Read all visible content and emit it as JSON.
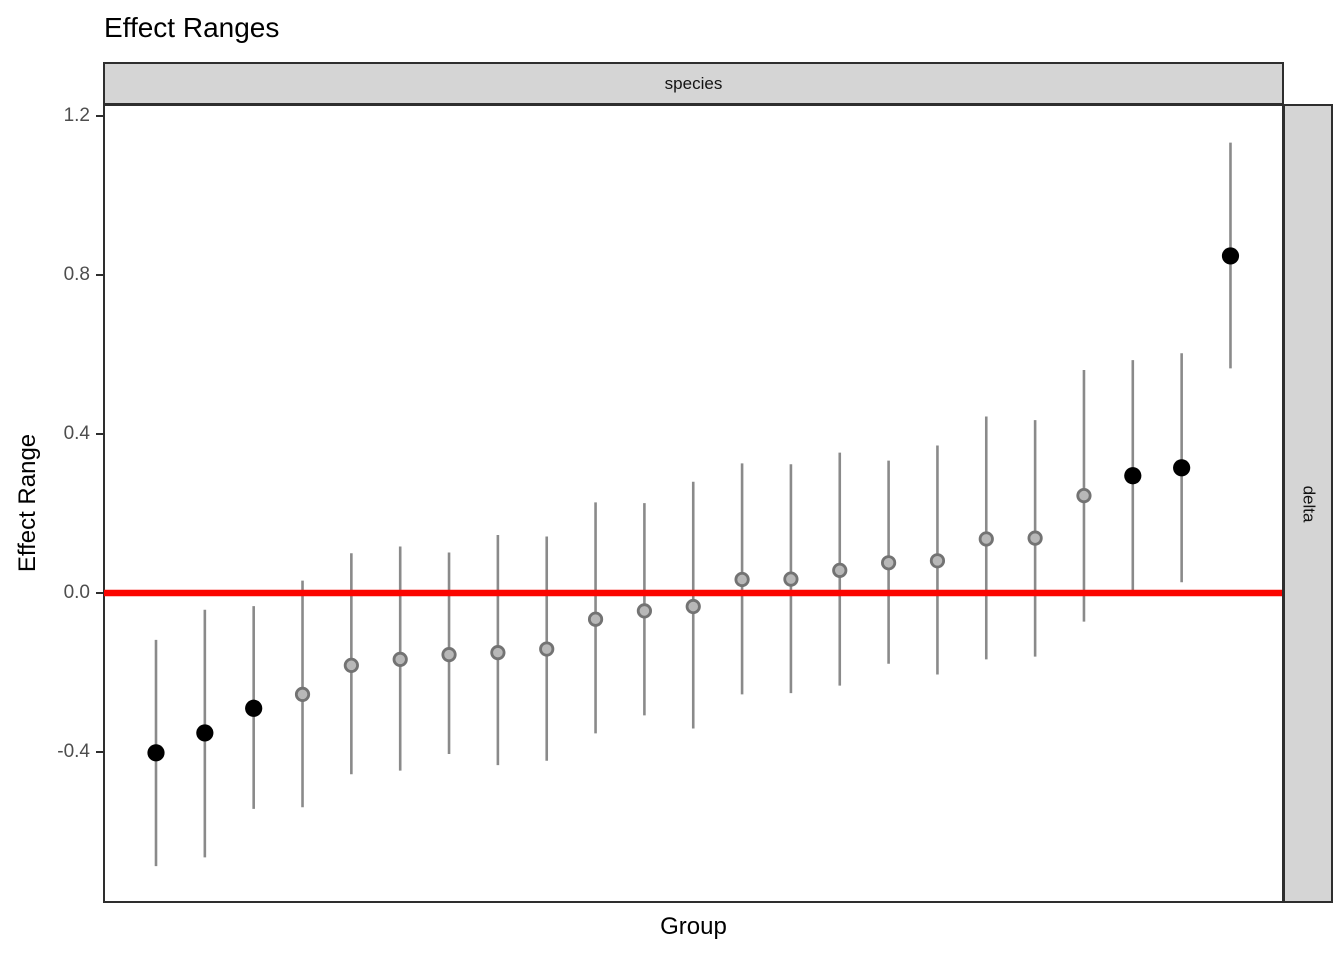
{
  "window": {
    "title": "Effect Ranges",
    "background_color": "#ffffff"
  },
  "chart": {
    "title": "Effect Ranges",
    "facet_top_label": "species",
    "facet_right_label": "delta",
    "x_axis_label": "Group",
    "y_axis_label": "Effect Range"
  },
  "colors": {
    "reference_line": "#FB0500",
    "interval_bar": "#8a8a8a",
    "point_black": "#000000",
    "point_gray_fill": "#b8b8b8",
    "point_gray_stroke": "#737373",
    "strip_fill": "#d5d5d5",
    "panel_border": "#2e2e2e",
    "tick_label": "#4d4d4d"
  },
  "chart_data": {
    "type": "scatter",
    "subtype": "point-range (caterpillar plot)",
    "title": "Effect Ranges",
    "xlabel": "Group",
    "ylabel": "Effect Range",
    "facet_top": "species",
    "facet_right": "delta",
    "x_axis": "23 unlabeled discrete groups, sorted ascending by estimate",
    "ylim": [
      -0.78,
      1.23
    ],
    "y_ticks": [
      {
        "label": "1.2",
        "value": 1.2
      },
      {
        "label": "0.8",
        "value": 0.8
      },
      {
        "label": "0.4",
        "value": 0.4
      },
      {
        "label": "0.0",
        "value": 0.0
      },
      {
        "label": "-0.4",
        "value": -0.4
      }
    ],
    "grid": false,
    "legend_position": "none",
    "reference_line_y": 0.0,
    "points": [
      {
        "group": 1,
        "estimate": -0.402,
        "low": -0.687,
        "high": -0.118,
        "emphasis": "black"
      },
      {
        "group": 2,
        "estimate": -0.352,
        "low": -0.665,
        "high": -0.042,
        "emphasis": "black"
      },
      {
        "group": 3,
        "estimate": -0.29,
        "low": -0.543,
        "high": -0.033,
        "emphasis": "black"
      },
      {
        "group": 4,
        "estimate": -0.255,
        "low": -0.539,
        "high": 0.031,
        "emphasis": "gray"
      },
      {
        "group": 5,
        "estimate": -0.182,
        "low": -0.456,
        "high": 0.1,
        "emphasis": "gray"
      },
      {
        "group": 6,
        "estimate": -0.167,
        "low": -0.447,
        "high": 0.117,
        "emphasis": "gray"
      },
      {
        "group": 7,
        "estimate": -0.155,
        "low": -0.405,
        "high": 0.102,
        "emphasis": "gray"
      },
      {
        "group": 8,
        "estimate": -0.15,
        "low": -0.433,
        "high": 0.146,
        "emphasis": "gray"
      },
      {
        "group": 9,
        "estimate": -0.141,
        "low": -0.422,
        "high": 0.142,
        "emphasis": "gray"
      },
      {
        "group": 10,
        "estimate": -0.066,
        "low": -0.353,
        "high": 0.228,
        "emphasis": "gray"
      },
      {
        "group": 11,
        "estimate": -0.045,
        "low": -0.308,
        "high": 0.226,
        "emphasis": "gray"
      },
      {
        "group": 12,
        "estimate": -0.034,
        "low": -0.341,
        "high": 0.28,
        "emphasis": "gray"
      },
      {
        "group": 13,
        "estimate": 0.034,
        "low": -0.255,
        "high": 0.326,
        "emphasis": "gray"
      },
      {
        "group": 14,
        "estimate": 0.035,
        "low": -0.252,
        "high": 0.324,
        "emphasis": "gray"
      },
      {
        "group": 15,
        "estimate": 0.057,
        "low": -0.233,
        "high": 0.353,
        "emphasis": "gray"
      },
      {
        "group": 16,
        "estimate": 0.076,
        "low": -0.178,
        "high": 0.333,
        "emphasis": "gray"
      },
      {
        "group": 17,
        "estimate": 0.081,
        "low": -0.205,
        "high": 0.371,
        "emphasis": "gray"
      },
      {
        "group": 18,
        "estimate": 0.136,
        "low": -0.167,
        "high": 0.444,
        "emphasis": "gray"
      },
      {
        "group": 19,
        "estimate": 0.138,
        "low": -0.16,
        "high": 0.435,
        "emphasis": "gray"
      },
      {
        "group": 20,
        "estimate": 0.245,
        "low": -0.072,
        "high": 0.561,
        "emphasis": "gray"
      },
      {
        "group": 21,
        "estimate": 0.295,
        "low": 0.0,
        "high": 0.586,
        "emphasis": "black"
      },
      {
        "group": 22,
        "estimate": 0.315,
        "low": 0.027,
        "high": 0.603,
        "emphasis": "black"
      },
      {
        "group": 23,
        "estimate": 0.848,
        "low": 0.565,
        "high": 1.133,
        "emphasis": "black"
      }
    ]
  }
}
